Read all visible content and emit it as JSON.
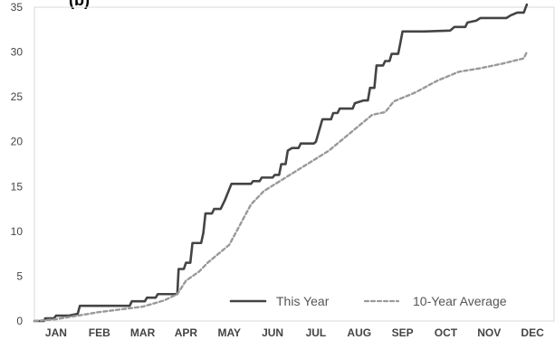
{
  "chart_data": {
    "type": "line",
    "title_fragment": "(b)",
    "xlabel": "",
    "ylabel": "",
    "x_ticks": [
      "JAN",
      "FEB",
      "MAR",
      "APR",
      "MAY",
      "JUN",
      "JUL",
      "AUG",
      "SEP",
      "OCT",
      "NOV",
      "DEC"
    ],
    "ylim": [
      0,
      35
    ],
    "y_ticks": [
      0,
      5,
      10,
      15,
      20,
      25,
      30,
      35
    ],
    "xlim": [
      0,
      12
    ],
    "grid": false,
    "legend_position": "bottom-right",
    "series": [
      {
        "name": "This Year",
        "style": "solid",
        "color": "#444444",
        "points": [
          [
            0.0,
            0.0
          ],
          [
            0.22,
            0.0
          ],
          [
            0.25,
            0.3
          ],
          [
            0.45,
            0.3
          ],
          [
            0.5,
            0.6
          ],
          [
            0.8,
            0.6
          ],
          [
            1.0,
            0.8
          ],
          [
            1.05,
            1.7
          ],
          [
            1.5,
            1.7
          ],
          [
            2.2,
            1.7
          ],
          [
            2.25,
            2.2
          ],
          [
            2.55,
            2.2
          ],
          [
            2.6,
            2.6
          ],
          [
            2.8,
            2.6
          ],
          [
            2.85,
            3.0
          ],
          [
            3.3,
            3.0
          ],
          [
            3.33,
            5.8
          ],
          [
            3.45,
            5.8
          ],
          [
            3.5,
            6.5
          ],
          [
            3.6,
            6.5
          ],
          [
            3.65,
            8.7
          ],
          [
            3.85,
            8.7
          ],
          [
            3.9,
            9.8
          ],
          [
            3.95,
            12.0
          ],
          [
            4.1,
            12.0
          ],
          [
            4.15,
            12.5
          ],
          [
            4.3,
            12.5
          ],
          [
            4.4,
            13.5
          ],
          [
            4.55,
            15.3
          ],
          [
            4.7,
            15.3
          ],
          [
            5.0,
            15.3
          ],
          [
            5.05,
            15.6
          ],
          [
            5.2,
            15.6
          ],
          [
            5.25,
            16.0
          ],
          [
            5.5,
            16.0
          ],
          [
            5.55,
            16.3
          ],
          [
            5.65,
            16.3
          ],
          [
            5.7,
            17.5
          ],
          [
            5.8,
            17.5
          ],
          [
            5.85,
            19.0
          ],
          [
            5.95,
            19.3
          ],
          [
            6.1,
            19.3
          ],
          [
            6.15,
            19.8
          ],
          [
            6.45,
            19.8
          ],
          [
            6.5,
            20.0
          ],
          [
            6.65,
            22.5
          ],
          [
            6.85,
            22.5
          ],
          [
            6.9,
            23.2
          ],
          [
            7.0,
            23.2
          ],
          [
            7.05,
            23.7
          ],
          [
            7.35,
            23.7
          ],
          [
            7.4,
            24.3
          ],
          [
            7.6,
            24.6
          ],
          [
            7.7,
            24.6
          ],
          [
            7.75,
            26.0
          ],
          [
            7.85,
            26.0
          ],
          [
            7.9,
            28.5
          ],
          [
            8.05,
            28.5
          ],
          [
            8.1,
            29.0
          ],
          [
            8.2,
            29.0
          ],
          [
            8.25,
            29.8
          ],
          [
            8.4,
            29.8
          ],
          [
            8.45,
            31.0
          ],
          [
            8.5,
            32.3
          ],
          [
            9.0,
            32.3
          ],
          [
            9.6,
            32.4
          ],
          [
            9.7,
            32.8
          ],
          [
            9.95,
            32.8
          ],
          [
            10.0,
            33.3
          ],
          [
            10.2,
            33.5
          ],
          [
            10.3,
            33.8
          ],
          [
            10.9,
            33.8
          ],
          [
            11.0,
            34.1
          ],
          [
            11.15,
            34.4
          ],
          [
            11.3,
            34.4
          ],
          [
            11.37,
            35.3
          ]
        ]
      },
      {
        "name": "10-Year Average",
        "style": "dashed",
        "color": "#999999",
        "points": [
          [
            0.0,
            0.0
          ],
          [
            0.5,
            0.2
          ],
          [
            1.0,
            0.6
          ],
          [
            1.5,
            1.0
          ],
          [
            2.0,
            1.3
          ],
          [
            2.5,
            1.6
          ],
          [
            3.0,
            2.3
          ],
          [
            3.3,
            3.0
          ],
          [
            3.5,
            4.5
          ],
          [
            3.8,
            5.5
          ],
          [
            4.0,
            6.5
          ],
          [
            4.5,
            8.5
          ],
          [
            5.0,
            13.0
          ],
          [
            5.3,
            14.5
          ],
          [
            5.8,
            16.0
          ],
          [
            6.3,
            17.5
          ],
          [
            6.8,
            19.0
          ],
          [
            7.3,
            21.0
          ],
          [
            7.8,
            23.0
          ],
          [
            8.1,
            23.3
          ],
          [
            8.3,
            24.5
          ],
          [
            8.8,
            25.5
          ],
          [
            9.3,
            26.8
          ],
          [
            9.8,
            27.8
          ],
          [
            10.3,
            28.2
          ],
          [
            10.8,
            28.7
          ],
          [
            11.3,
            29.3
          ],
          [
            11.37,
            30.0
          ]
        ]
      }
    ],
    "legend": [
      {
        "label": "This Year",
        "style": "solid"
      },
      {
        "label": "10-Year Average",
        "style": "dashed"
      }
    ]
  }
}
